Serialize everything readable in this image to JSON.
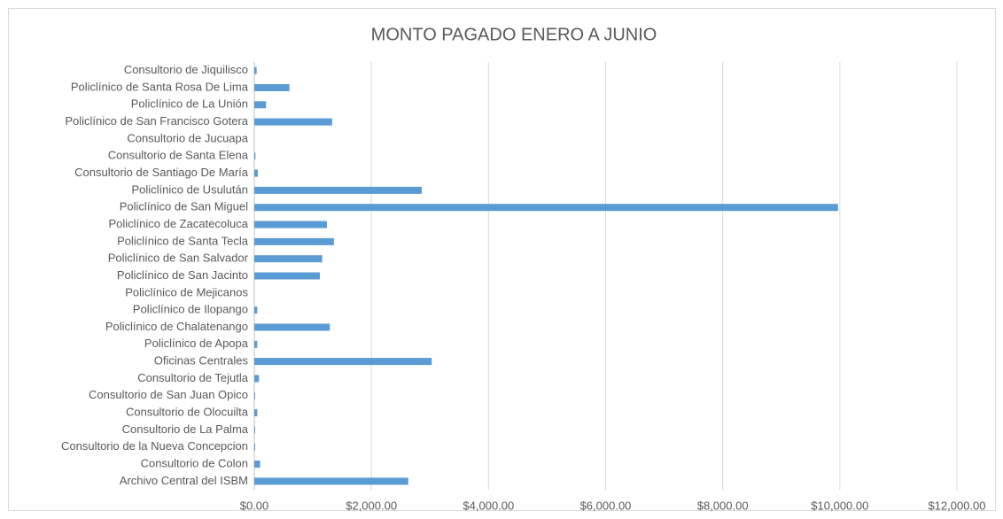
{
  "chart_data": {
    "type": "bar",
    "orientation": "horizontal",
    "title": "MONTO PAGADO ENERO A JUNIO",
    "categories": [
      "Consultorio de Jiquilisco",
      "Policlínico de Santa Rosa De Lima",
      "Policlínico de La Unión",
      "Policlínico de San Francisco Gotera",
      "Consultorio de Jucuapa",
      "Consultorio de Santa Elena",
      "Consultorio de Santiago De María",
      "Policlínico de Usulután",
      "Policlínico de San Miguel",
      "Policlínico de Zacatecoluca",
      "Policlínico de Santa Tecla",
      "Policlínico de San Salvador",
      "Policlínico de San Jacinto",
      "Policlínico de Mejicanos",
      "Policlínico de Ilopango",
      "Policlínico de Chalatenango",
      "Policlínico de Apopa",
      "Oficinas Centrales",
      "Consultorio de Tejutla",
      "Consultorio de San Juan Opico",
      "Consultorio de Olocuilta",
      "Consultorio de La Palma",
      "Consultorio de la Nueva Concepcion",
      "Consultorio de Colon",
      "Archivo Central del ISBM"
    ],
    "values": [
      40,
      600,
      200,
      1330,
      0,
      20,
      60,
      2860,
      9970,
      1240,
      1360,
      1160,
      1120,
      0,
      50,
      1290,
      50,
      3030,
      80,
      15,
      50,
      15,
      15,
      100,
      2630
    ],
    "color": "#5b9bd5",
    "xlim": [
      0,
      12000
    ],
    "xticks": [
      {
        "value": 0,
        "label": "$0.00"
      },
      {
        "value": 2000,
        "label": "$2,000.00"
      },
      {
        "value": 4000,
        "label": "$4,000.00"
      },
      {
        "value": 6000,
        "label": "$6,000.00"
      },
      {
        "value": 8000,
        "label": "$8,000.00"
      },
      {
        "value": 10000,
        "label": "$10,000.00"
      },
      {
        "value": 12000,
        "label": "$12,000.00"
      }
    ],
    "grid": true
  }
}
